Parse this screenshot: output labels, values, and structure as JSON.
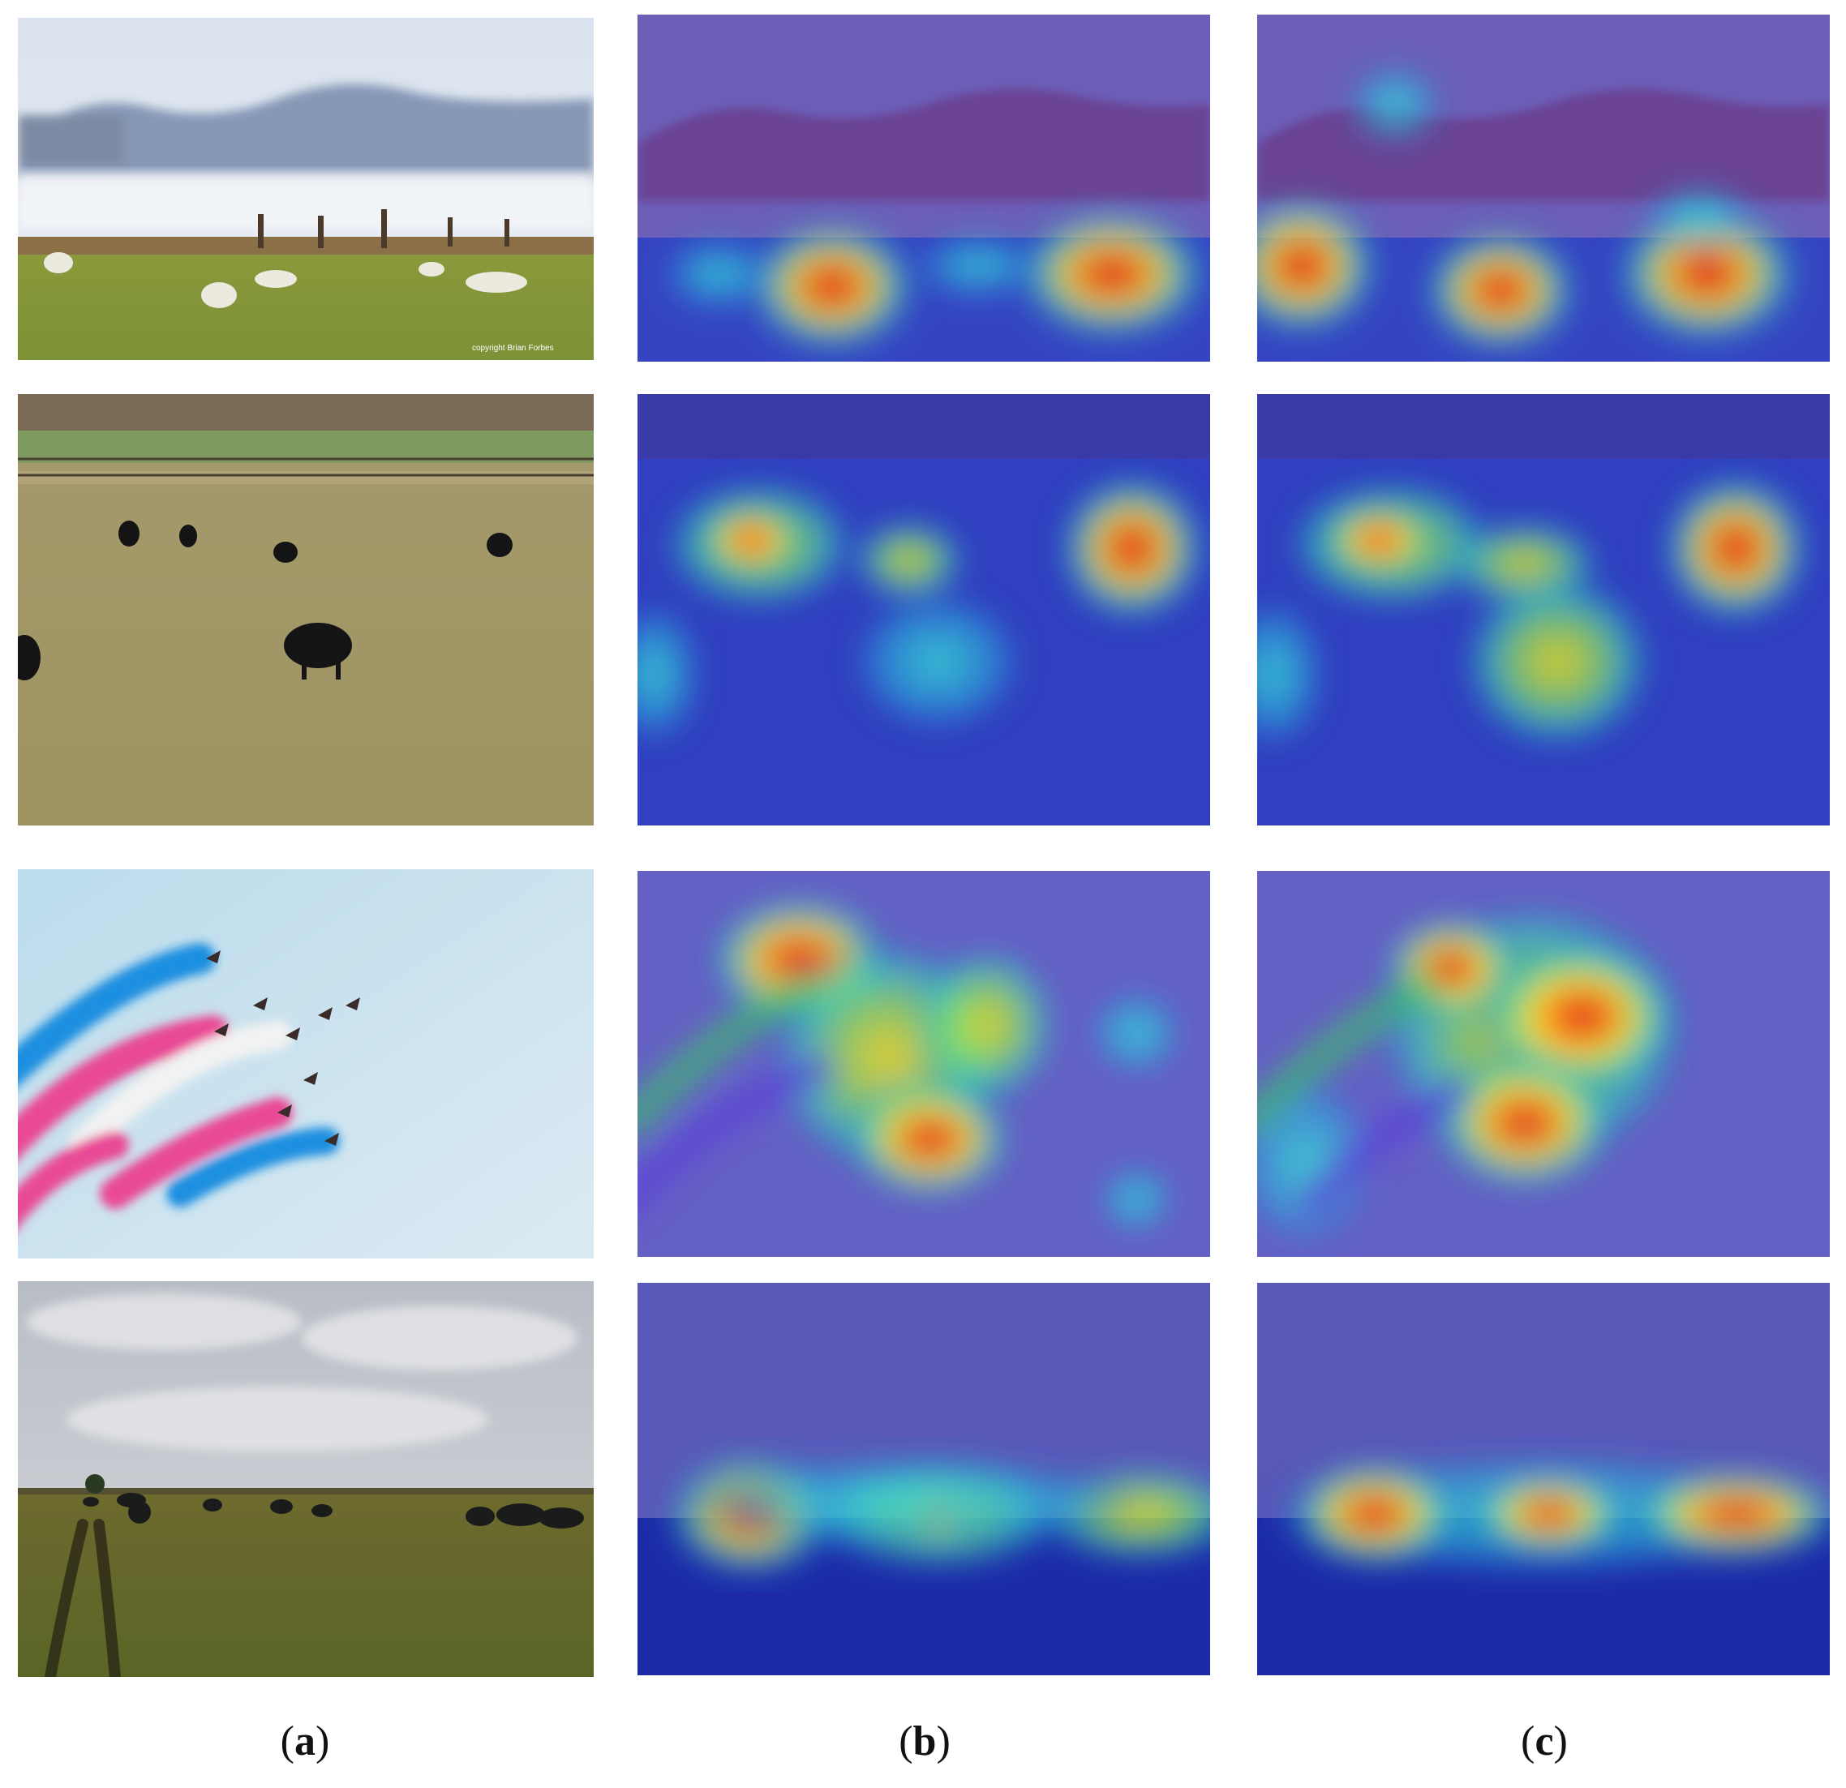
{
  "columns": [
    {
      "letter": "a"
    },
    {
      "letter": "b"
    },
    {
      "letter": "c"
    }
  ],
  "rows": [
    {
      "scene": "sheep-field",
      "watermark": "copyright Brian Forbes"
    },
    {
      "scene": "cattle-field"
    },
    {
      "scene": "aerobatic-jets"
    },
    {
      "scene": "buffalo-savanna"
    }
  ],
  "colors": {
    "heat_hot": "#e0001a",
    "heat_warm": "#ffd21a",
    "heat_mid": "#27d3c9",
    "heat_cold": "#2c3fb8"
  }
}
